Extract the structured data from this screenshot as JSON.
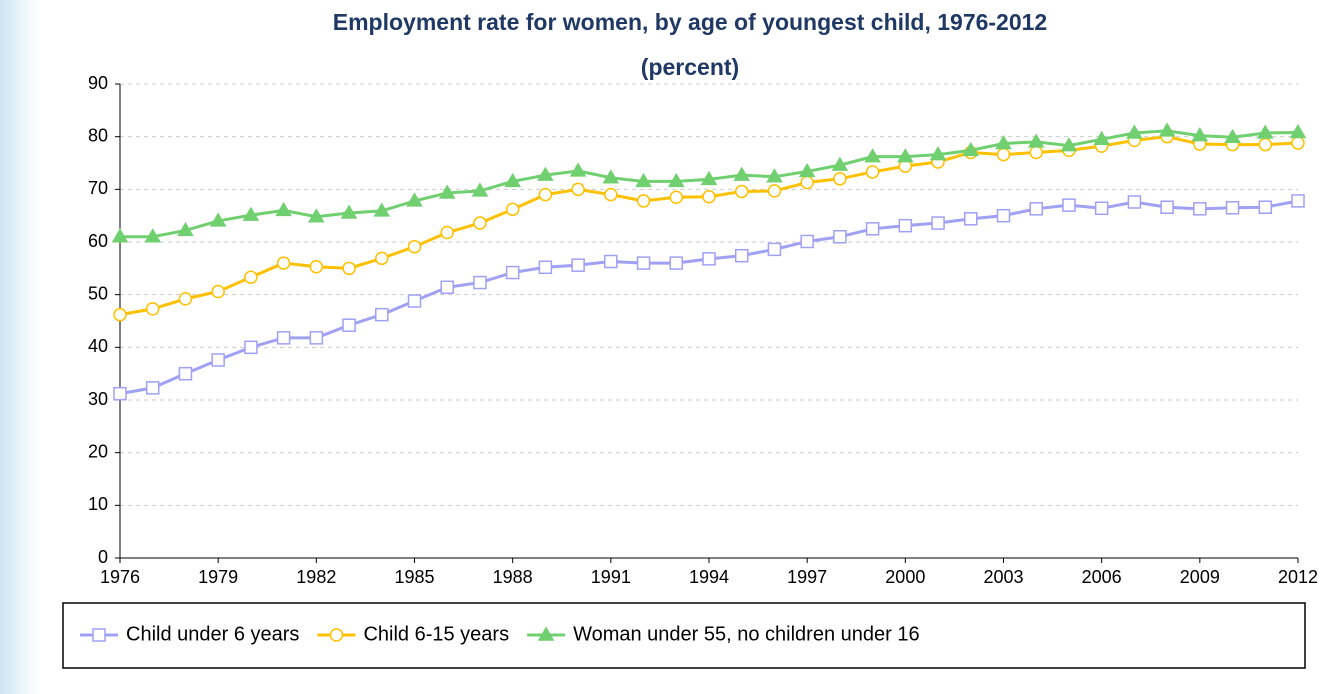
{
  "chart_data": {
    "type": "line",
    "title": "Employment rate for women, by age of youngest child, 1976-2012",
    "subtitle": "(percent)",
    "x": [
      1976,
      1977,
      1978,
      1979,
      1980,
      1981,
      1982,
      1983,
      1984,
      1985,
      1986,
      1987,
      1988,
      1989,
      1990,
      1991,
      1992,
      1993,
      1994,
      1995,
      1996,
      1997,
      1998,
      1999,
      2000,
      2001,
      2002,
      2003,
      2004,
      2005,
      2006,
      2007,
      2008,
      2009,
      2010,
      2011,
      2012
    ],
    "xlim": [
      1976,
      2012
    ],
    "xticks": [
      1976,
      1979,
      1982,
      1985,
      1988,
      1991,
      1994,
      1997,
      2000,
      2003,
      2006,
      2009,
      2012
    ],
    "ylim": [
      0,
      90
    ],
    "yticks": [
      0,
      10,
      20,
      30,
      40,
      50,
      60,
      70,
      80,
      90
    ],
    "grid": true,
    "legend": "bottom",
    "series": [
      {
        "name": "Child under 6 years",
        "color": "#a0a0f5",
        "marker": "square",
        "values": [
          31.2,
          32.3,
          35,
          37.6,
          40,
          41.8,
          41.8,
          44.2,
          46.2,
          48.8,
          51.4,
          52.3,
          54.2,
          55.2,
          55.6,
          56.3,
          56,
          56,
          56.8,
          57.4,
          58.6,
          60.1,
          61,
          62.5,
          63.1,
          63.6,
          64.4,
          65,
          66.3,
          67,
          66.4,
          67.6,
          66.6,
          66.3,
          66.5,
          66.6,
          67.8
        ]
      },
      {
        "name": "Child 6-15 years",
        "color": "#ffc000",
        "marker": "circle",
        "values": [
          46.2,
          47.3,
          49.2,
          50.6,
          53.3,
          56,
          55.3,
          55,
          56.9,
          59.1,
          61.8,
          63.6,
          66.2,
          69,
          70,
          69,
          67.8,
          68.5,
          68.6,
          69.6,
          69.7,
          71.3,
          72,
          73.3,
          74.4,
          75.2,
          77,
          76.6,
          77,
          77.4,
          78.2,
          79.3,
          80,
          78.6,
          78.5,
          78.5,
          78.8
        ]
      },
      {
        "name": "Woman under 55, no children under 16",
        "color": "#70d070",
        "marker": "triangle",
        "values": [
          61,
          61,
          62.2,
          64,
          65.1,
          66,
          64.8,
          65.5,
          65.9,
          67.8,
          69.3,
          69.7,
          71.5,
          72.7,
          73.5,
          72.2,
          71.5,
          71.5,
          71.9,
          72.7,
          72.4,
          73.4,
          74.6,
          76.2,
          76.2,
          76.6,
          77.4,
          78.7,
          79,
          78.3,
          79.5,
          80.7,
          81.1,
          80.2,
          79.9,
          80.7,
          80.8
        ]
      }
    ]
  }
}
